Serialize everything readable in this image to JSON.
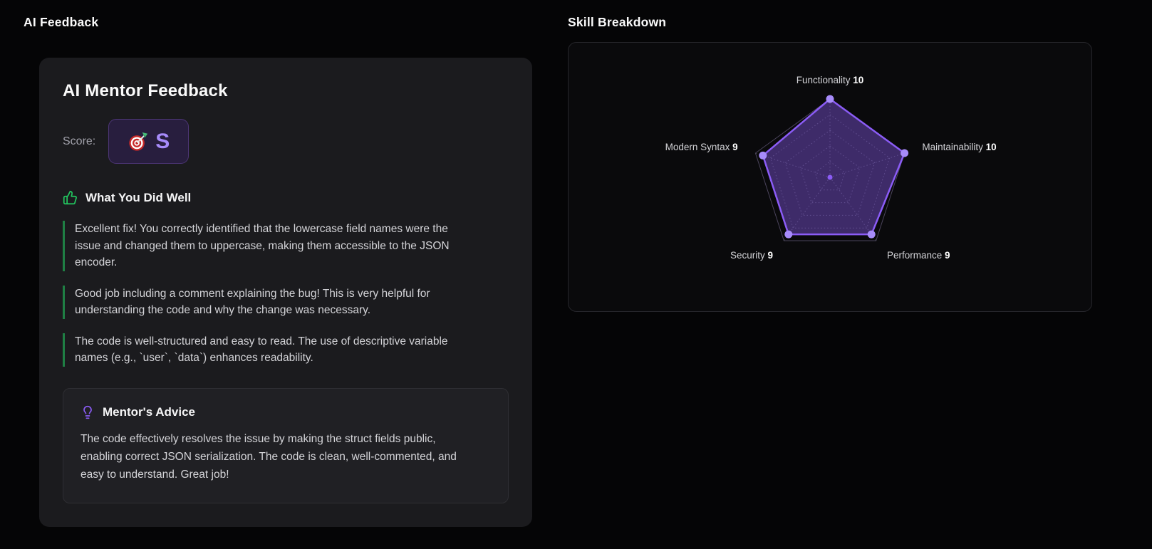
{
  "page": {
    "left_section_title": "AI Feedback",
    "right_section_title": "Skill Breakdown"
  },
  "feedback_card": {
    "title": "AI Mentor Feedback",
    "score_label": "Score:",
    "score_icon": "direct-hit-target 🎯",
    "score_grade": "S",
    "strengths": {
      "heading": "What You Did Well",
      "items": [
        "Excellent fix! You correctly identified that the lowercase field names were the issue and changed them to uppercase, making them accessible to the JSON encoder.",
        "Good job including a comment explaining the bug! This is very helpful for understanding the code and why the change was necessary.",
        "The code is well-structured and easy to read. The use of descriptive variable names (e.g., `user`, `data`) enhances readability."
      ]
    },
    "advice": {
      "heading": "Mentor's Advice",
      "text": "The code effectively resolves the issue by making the struct fields public, enabling correct JSON serialization. The code is clean, well-commented, and easy to understand. Great job!"
    }
  },
  "chart_data": {
    "type": "radar",
    "title": "Skill Breakdown",
    "categories": [
      "Functionality",
      "Maintainability",
      "Performance",
      "Security",
      "Modern Syntax"
    ],
    "values": [
      10,
      10,
      9,
      9,
      9
    ],
    "max": 10,
    "rings": 5,
    "grid": "dashed pentagons with spokes",
    "legend": "none",
    "colors": {
      "stroke": "#8b5cf6",
      "fill": "rgba(139,92,246,0.4)",
      "dot": "#a78bfa",
      "grid": "#45454d",
      "grid_outer": "#4b445c",
      "label": "#d4d4d8",
      "value": "#ffffff"
    }
  }
}
